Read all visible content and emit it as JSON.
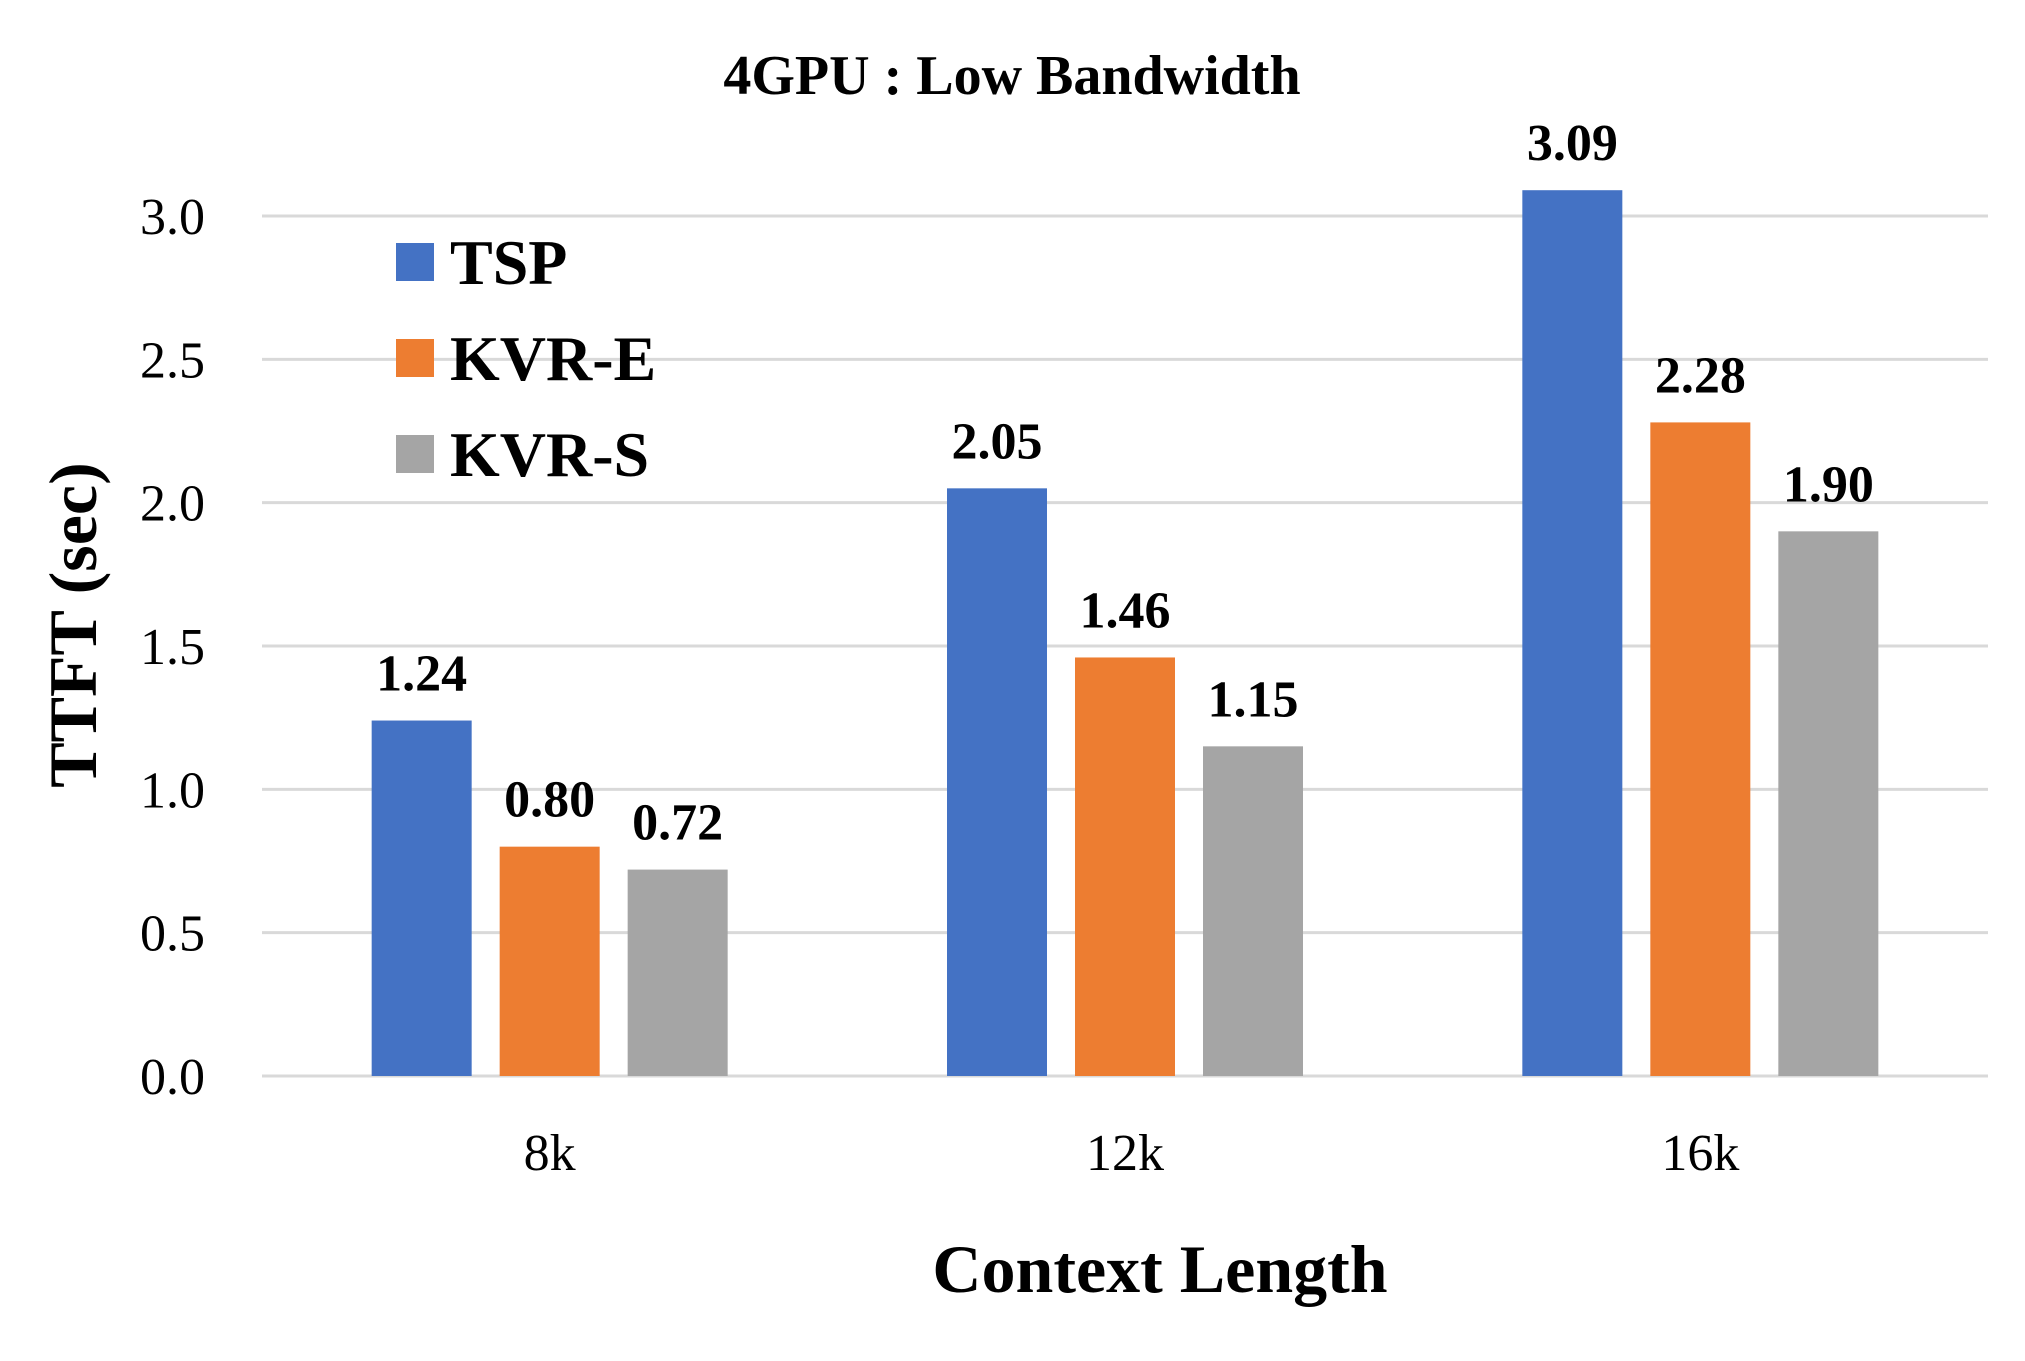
{
  "chart_data": {
    "type": "bar",
    "title": "4GPU : Low Bandwidth",
    "xlabel": "Context Length",
    "ylabel": "TTFT (sec)",
    "categories": [
      "8k",
      "12k",
      "16k"
    ],
    "series": [
      {
        "name": "TSP",
        "values": [
          1.24,
          2.05,
          3.09
        ],
        "color": "#4472C4"
      },
      {
        "name": "KVR-E",
        "values": [
          0.8,
          1.46,
          2.28
        ],
        "color": "#ED7D31"
      },
      {
        "name": "KVR-S",
        "values": [
          0.72,
          1.15,
          1.9
        ],
        "color": "#A5A5A5"
      }
    ],
    "data_labels": [
      [
        "1.24",
        "0.80",
        "0.72"
      ],
      [
        "2.05",
        "1.46",
        "1.15"
      ],
      [
        "3.09",
        "2.28",
        "1.90"
      ]
    ],
    "ylim": [
      0,
      3.0
    ],
    "yticks": [
      "0.0",
      "0.5",
      "1.0",
      "1.5",
      "2.0",
      "2.5",
      "3.0"
    ],
    "grid": true,
    "legend_position": "top-left"
  }
}
